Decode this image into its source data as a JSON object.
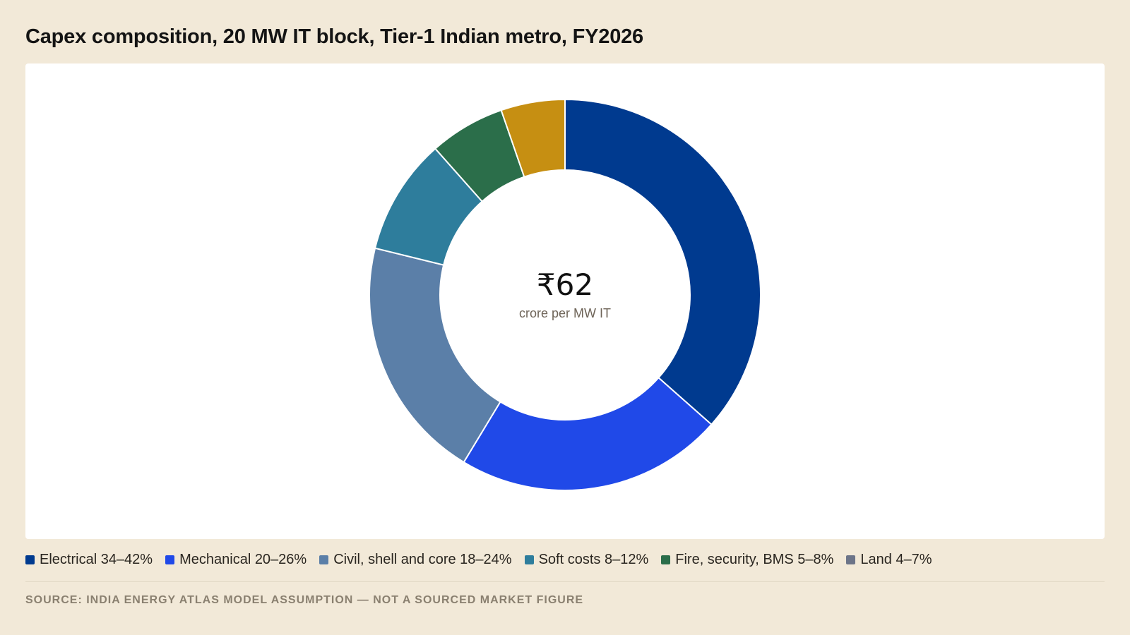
{
  "title": "Capex composition, 20 MW IT block, Tier-1 Indian metro, FY2026",
  "center": {
    "value": "₹62",
    "label": "crore per MW IT"
  },
  "legend": [
    {
      "label": "Electrical 34–42%",
      "color": "#003a8f"
    },
    {
      "label": "Mechanical 20–26%",
      "color": "#2049e8"
    },
    {
      "label": "Civil, shell and core 18–24%",
      "color": "#5b7fa8"
    },
    {
      "label": "Soft costs 8–12%",
      "color": "#2e7d9c"
    },
    {
      "label": "Fire, security, BMS 5–8%",
      "color": "#2b6e4a"
    },
    {
      "label": "Land 4–7%",
      "color": "#6c7488"
    }
  ],
  "source": "SOURCE: INDIA ENERGY ATLAS MODEL ASSUMPTION — NOT A SOURCED MARKET FIGURE",
  "chart_data": {
    "type": "pie",
    "variant": "donut",
    "categories": [
      "Electrical",
      "Mechanical",
      "Civil, shell and core",
      "Soft costs",
      "Fire, security, BMS",
      "Land"
    ],
    "values": [
      38,
      23,
      21,
      10,
      6.5,
      5.5
    ],
    "colors": [
      "#003a8f",
      "#2049e8",
      "#5b7fa8",
      "#2e7d9c",
      "#2b6e4a",
      "#c68f12"
    ],
    "center_value": "₹62",
    "center_label": "crore per MW IT",
    "title": "Capex composition, 20 MW IT block, Tier-1 Indian metro, FY2026"
  }
}
